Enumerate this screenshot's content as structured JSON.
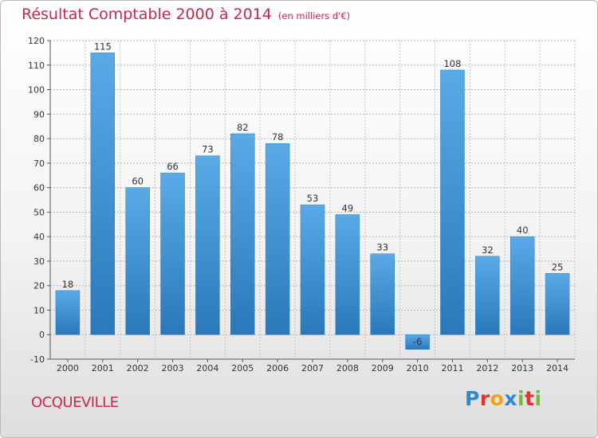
{
  "title": "Résultat Comptable 2000 à 2014",
  "subtitle": "(en milliers d'€)",
  "town": "OCQUEVILLE",
  "logo": {
    "text": "Proxiti",
    "letters": [
      "P",
      "r",
      "o",
      "x",
      "i",
      "t",
      "i"
    ],
    "colors": [
      "#2a8ad6",
      "#e3352e",
      "#f0a21b",
      "#2a8ad6",
      "#7cb83a",
      "#e3352e",
      "#7cb83a"
    ]
  },
  "colors": {
    "title": "#c8294a",
    "bar_light": "#5aaae6",
    "bar_dark": "#2a78ba"
  },
  "chart_data": {
    "type": "bar",
    "title": "Résultat Comptable 2000 à 2014",
    "ylabel": "(en milliers d'€)",
    "categories": [
      "2000",
      "2001",
      "2002",
      "2003",
      "2004",
      "2005",
      "2006",
      "2007",
      "2008",
      "2009",
      "2010",
      "2011",
      "2012",
      "2013",
      "2014"
    ],
    "values": [
      18,
      115,
      60,
      66,
      73,
      82,
      78,
      53,
      49,
      33,
      -6,
      108,
      32,
      40,
      25
    ],
    "ylim": [
      -10,
      120
    ],
    "yticks": [
      -10,
      0,
      10,
      20,
      30,
      40,
      50,
      60,
      70,
      80,
      90,
      100,
      110,
      120
    ],
    "grid": true
  }
}
